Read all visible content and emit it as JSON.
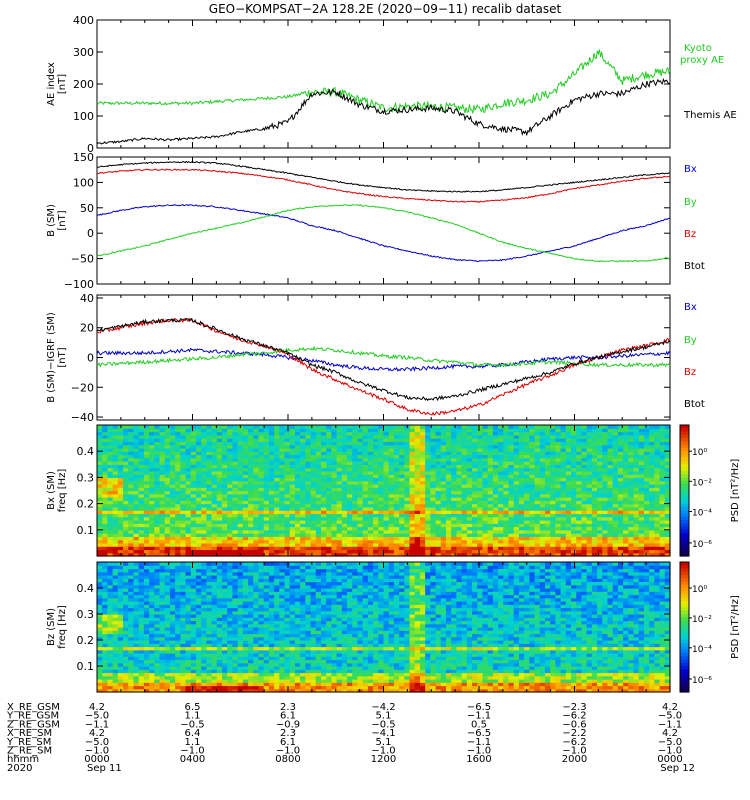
{
  "title": "GEO−KOMPSAT−2A 128.2E (2020−09−11) recalib dataset",
  "colors": {
    "kyoto": "#22cc22",
    "themis": "#000000",
    "bx": "#0000cc",
    "by": "#22cc22",
    "bz": "#dd0000",
    "btot": "#000000"
  },
  "chart_data": [
    {
      "type": "line",
      "panel": "ae",
      "ylabel_line1": "AE index",
      "ylabel_line2": "[nT]",
      "ylim": [
        0,
        400
      ],
      "yticks": [
        0,
        100,
        200,
        300,
        400
      ],
      "x_hours": [
        0,
        1,
        2,
        3,
        4,
        5,
        6,
        7,
        8,
        9,
        10,
        11,
        12,
        13,
        14,
        15,
        16,
        17,
        18,
        19,
        20,
        21,
        22,
        23,
        24
      ],
      "series": [
        {
          "name": "Kyoto proxy AE",
          "name_line1": "Kyoto",
          "name_line2": "proxy AE",
          "values": [
            140,
            140,
            140,
            140,
            140,
            145,
            150,
            155,
            160,
            175,
            175,
            150,
            125,
            130,
            130,
            125,
            120,
            140,
            150,
            170,
            230,
            300,
            210,
            230,
            240
          ]
        },
        {
          "name": "Themis AE",
          "values": [
            15,
            20,
            30,
            25,
            30,
            35,
            50,
            60,
            80,
            170,
            175,
            135,
            115,
            120,
            125,
            115,
            75,
            60,
            50,
            100,
            150,
            170,
            170,
            200,
            210
          ]
        }
      ]
    },
    {
      "type": "line",
      "panel": "b_sm",
      "ylabel_line1": "B (SM)",
      "ylabel_line2": "[nT]",
      "ylim": [
        -100,
        150
      ],
      "yticks": [
        -100,
        -50,
        0,
        50,
        100,
        150
      ],
      "x_hours": [
        0,
        1,
        2,
        3,
        4,
        5,
        6,
        7,
        8,
        9,
        10,
        11,
        12,
        13,
        14,
        15,
        16,
        17,
        18,
        19,
        20,
        21,
        22,
        23,
        24
      ],
      "series": [
        {
          "name": "Bx",
          "values": [
            35,
            45,
            52,
            55,
            55,
            52,
            45,
            38,
            30,
            15,
            5,
            -10,
            -25,
            -35,
            -45,
            -52,
            -55,
            -53,
            -45,
            -35,
            -25,
            -10,
            5,
            15,
            30
          ]
        },
        {
          "name": "By",
          "values": [
            -45,
            -35,
            -25,
            -12,
            0,
            10,
            20,
            32,
            45,
            52,
            55,
            55,
            50,
            42,
            30,
            18,
            0,
            -18,
            -30,
            -40,
            -50,
            -55,
            -55,
            -55,
            -48
          ]
        },
        {
          "name": "Bz",
          "values": [
            118,
            122,
            125,
            125,
            125,
            122,
            118,
            112,
            105,
            95,
            85,
            78,
            72,
            68,
            65,
            62,
            62,
            65,
            70,
            78,
            88,
            95,
            102,
            108,
            112
          ]
        },
        {
          "name": "Btot",
          "values": [
            130,
            135,
            138,
            140,
            140,
            138,
            132,
            125,
            118,
            110,
            102,
            95,
            90,
            85,
            83,
            82,
            82,
            85,
            90,
            95,
            100,
            105,
            110,
            115,
            118
          ]
        }
      ]
    },
    {
      "type": "line",
      "panel": "b_minus_igrf",
      "ylabel_line1": "B (SM)−IGRF (SM)",
      "ylabel_line2": "[nT]",
      "ylim": [
        -42,
        42
      ],
      "yticks": [
        -40,
        -20,
        0,
        20,
        40
      ],
      "x_hours": [
        0,
        1,
        2,
        3,
        4,
        5,
        6,
        7,
        8,
        9,
        10,
        11,
        12,
        13,
        14,
        15,
        16,
        17,
        18,
        19,
        20,
        21,
        22,
        23,
        24
      ],
      "series": [
        {
          "name": "Bx",
          "values": [
            3,
            3,
            3,
            4,
            5,
            4,
            3,
            2,
            0,
            -2,
            -5,
            -7,
            -8,
            -8,
            -7,
            -6,
            -6,
            -5,
            -3,
            -1,
            0,
            0,
            1,
            2,
            3
          ]
        },
        {
          "name": "By",
          "values": [
            -5,
            -4,
            -3,
            -2,
            -1,
            0,
            2,
            3,
            5,
            6,
            5,
            3,
            1,
            0,
            -2,
            -3,
            -5,
            -5,
            -4,
            -3,
            -4,
            -5,
            -5,
            -5,
            -5
          ]
        },
        {
          "name": "Bz",
          "values": [
            17,
            20,
            23,
            25,
            25,
            18,
            12,
            8,
            2,
            -8,
            -15,
            -22,
            -28,
            -35,
            -38,
            -36,
            -32,
            -25,
            -18,
            -12,
            -5,
            0,
            5,
            8,
            12
          ]
        },
        {
          "name": "Btot",
          "values": [
            18,
            21,
            24,
            25,
            25,
            19,
            13,
            8,
            3,
            -5,
            -10,
            -17,
            -22,
            -27,
            -28,
            -26,
            -22,
            -18,
            -14,
            -10,
            -4,
            0,
            4,
            7,
            11
          ]
        }
      ]
    },
    {
      "type": "heatmap",
      "panel": "bx_psd",
      "ylabel_line1": "Bx (SM)",
      "ylabel_line2": "freq [Hz]",
      "ylim": [
        0,
        0.5
      ],
      "yticks": [
        0.1,
        0.2,
        0.3,
        0.4
      ],
      "colorbar_label": "PSD [nT²/Hz]",
      "colorbar_ticks": [
        "10⁰",
        "10⁻²",
        "10⁻⁴",
        "10⁻⁶"
      ]
    },
    {
      "type": "heatmap",
      "panel": "bz_psd",
      "ylabel_line1": "Bz (SM)",
      "ylabel_line2": "freq [Hz]",
      "ylim": [
        0,
        0.5
      ],
      "yticks": [
        0.1,
        0.2,
        0.3,
        0.4
      ],
      "colorbar_label": "PSD [nT²/Hz]",
      "colorbar_ticks": [
        "10⁰",
        "10⁻²",
        "10⁻⁴",
        "10⁻⁶"
      ]
    }
  ],
  "ephemeris": {
    "row_labels": [
      "X_RE_GSM",
      "Y_RE_GSM",
      "Z_RE_GSM",
      "X_RE_SM",
      "Y_RE_SM",
      "Z_RE_SM",
      "hhmm",
      "2020"
    ],
    "columns": [
      {
        "values": [
          "4.2",
          "−5.0",
          "−1.1",
          "4.2",
          "−5.0",
          "−1.0",
          "0000",
          "Sep 11"
        ]
      },
      {
        "values": [
          "6.5",
          "1.1",
          "−0.5",
          "6.4",
          "1.1",
          "−1.0",
          "0400",
          ""
        ]
      },
      {
        "values": [
          "2.3",
          "6.1",
          "−0.9",
          "2.3",
          "6.1",
          "−1.0",
          "0800",
          ""
        ]
      },
      {
        "values": [
          "−4.2",
          "5.1",
          "−0.5",
          "−4.1",
          "5.1",
          "−1.0",
          "1200",
          ""
        ]
      },
      {
        "values": [
          "−6.5",
          "−1.1",
          "0.5",
          "−6.5",
          "−1.1",
          "−1.0",
          "1600",
          ""
        ]
      },
      {
        "values": [
          "−2.3",
          "−6.2",
          "−0.6",
          "−2.2",
          "−6.2",
          "−1.0",
          "2000",
          ""
        ]
      },
      {
        "values": [
          "4.2",
          "−5.0",
          "−1.1",
          "4.2",
          "−5.0",
          "−1.0",
          "0000",
          "Sep 12"
        ]
      }
    ]
  }
}
